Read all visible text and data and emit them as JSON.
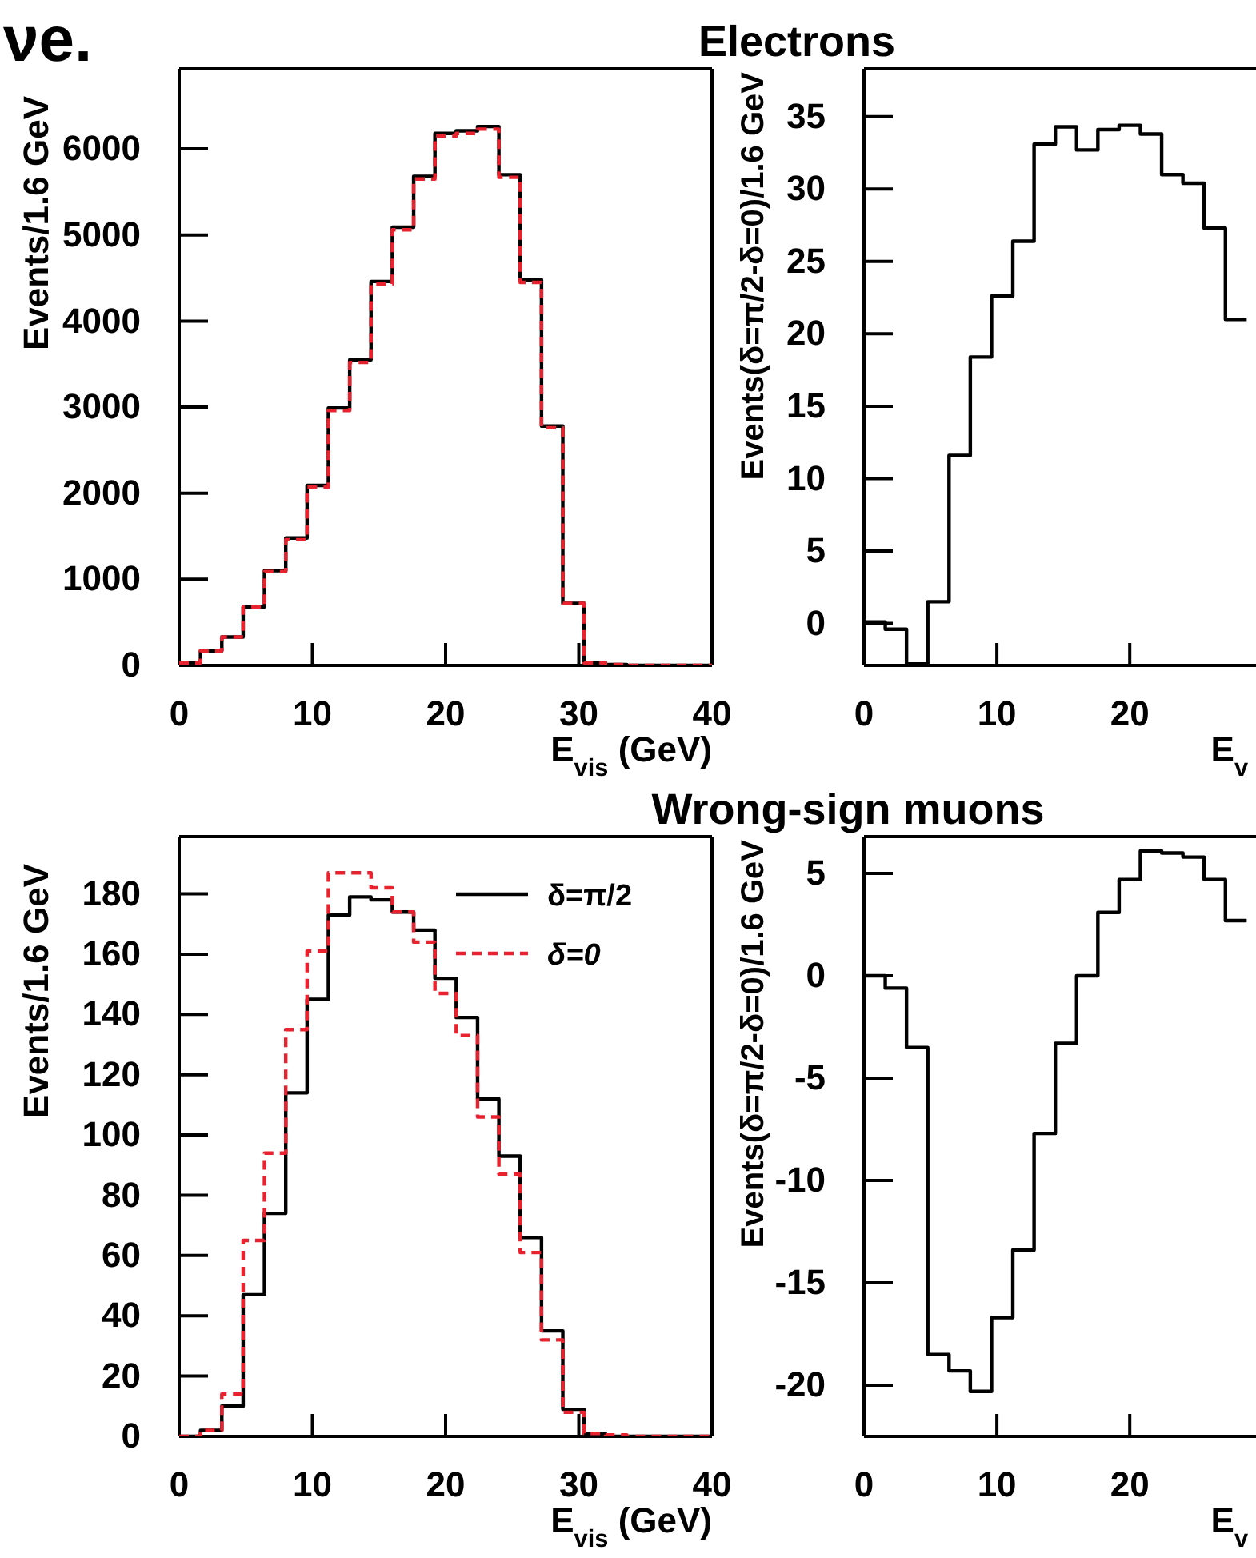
{
  "chart_data": [
    {
      "type": "histogram",
      "xlabel": "E$_{vis}$ (GeV)",
      "ylabel": "Events/1.6 GeV",
      "annotations": [
        "νe."
      ],
      "bins": [
        0,
        1.6,
        3.2,
        4.8,
        6.4,
        8,
        9.6,
        11.2,
        12.8,
        14.4,
        16,
        17.6,
        19.2,
        20.8,
        22.4,
        24,
        25.6,
        27.2,
        28.8,
        30.4,
        32,
        33.6,
        35.2,
        36.8,
        38.4,
        40
      ],
      "series": [
        {
          "color": "#000000",
          "line_style": "solid",
          "values": [
            30,
            170,
            330,
            680,
            1100,
            1480,
            2090,
            2990,
            3550,
            4460,
            5090,
            5680,
            6180,
            6210,
            6260,
            5700,
            4480,
            2780,
            720,
            30,
            10,
            0,
            0,
            0,
            0
          ]
        },
        {
          "color": "#e8222e",
          "line_style": "dashed",
          "values": [
            30,
            170,
            330,
            680,
            1090,
            1460,
            2070,
            2960,
            3520,
            4430,
            5060,
            5650,
            6150,
            6180,
            6230,
            5670,
            4450,
            2760,
            720,
            30,
            10,
            0,
            0,
            0,
            0
          ]
        }
      ],
      "xlim": [
        0,
        40
      ],
      "xticks": [
        0,
        10,
        20,
        30,
        40
      ],
      "ylim": [
        0,
        6930
      ],
      "yticks": [
        0,
        1000,
        2000,
        3000,
        4000,
        5000,
        6000
      ]
    },
    {
      "type": "histogram",
      "title": "Electrons",
      "xlabel": "E$_{v}$",
      "ylabel": "Events(δ=π/2-δ=0)/1.6 GeV",
      "bins": [
        0,
        1.6,
        3.2,
        4.8,
        6.4,
        8,
        9.6,
        11.2,
        12.8,
        14.4,
        16,
        17.6,
        19.2,
        20.8,
        22.4,
        24,
        25.6,
        27.2,
        28.8
      ],
      "series": [
        {
          "color": "#000000",
          "line_style": "solid",
          "values": [
            0.1,
            -0.4,
            -2.8,
            1.5,
            11.6,
            18.4,
            22.6,
            26.4,
            33.1,
            34.3,
            32.7,
            34.1,
            34.4,
            33.8,
            31.0,
            30.4,
            27.3,
            21.0
          ]
        }
      ],
      "xlim": [
        0,
        29.5
      ],
      "xticks": [
        0,
        10,
        20
      ],
      "ylim": [
        -2.9,
        38.3
      ],
      "yticks": [
        0,
        5,
        10,
        15,
        20,
        25,
        30,
        35
      ]
    },
    {
      "type": "histogram",
      "xlabel": "E$_{vis}$ (GeV)",
      "ylabel": "Events/1.6 GeV",
      "legend": "top right",
      "bins": [
        0,
        1.6,
        3.2,
        4.8,
        6.4,
        8,
        9.6,
        11.2,
        12.8,
        14.4,
        16,
        17.6,
        19.2,
        20.8,
        22.4,
        24,
        25.6,
        27.2,
        28.8,
        30.4,
        32,
        33.6,
        35.2,
        36.8,
        38.4,
        40
      ],
      "series": [
        {
          "name": "δ=π/2",
          "color": "#000000",
          "line_style": "solid",
          "values": [
            0,
            2,
            10,
            47,
            74,
            114,
            145,
            173,
            179,
            178,
            174,
            168,
            152,
            139,
            112,
            93,
            66,
            35,
            9,
            1,
            0,
            0,
            0,
            0,
            0
          ]
        },
        {
          "name": "δ=0",
          "color": "#e8222e",
          "line_style": "dashed",
          "values": [
            0,
            2,
            14,
            65,
            94,
            135,
            161,
            187,
            187,
            182,
            174,
            164,
            147,
            133,
            106,
            87,
            61,
            32,
            8,
            1,
            0.5,
            0,
            0,
            0,
            0
          ]
        }
      ],
      "xlim": [
        0,
        40
      ],
      "xticks": [
        0,
        10,
        20,
        30,
        40
      ],
      "ylim": [
        0,
        199
      ],
      "yticks": [
        0,
        20,
        40,
        60,
        80,
        100,
        120,
        140,
        160,
        180
      ]
    },
    {
      "type": "histogram",
      "title": "Wrong-sign muons",
      "xlabel": "E$_{v}$",
      "ylabel": "Events(δ=π/2-δ=0)/1.6 GeV",
      "bins": [
        0,
        1.6,
        3.2,
        4.8,
        6.4,
        8,
        9.6,
        11.2,
        12.8,
        14.4,
        16,
        17.6,
        19.2,
        20.8,
        22.4,
        24,
        25.6,
        27.2,
        28.8
      ],
      "series": [
        {
          "color": "#000000",
          "line_style": "solid",
          "values": [
            0,
            -0.6,
            -3.5,
            -18.5,
            -19.3,
            -20.3,
            -16.7,
            -13.4,
            -7.7,
            -3.3,
            0,
            3.1,
            4.7,
            6.1,
            6.0,
            5.8,
            4.7,
            2.7
          ]
        }
      ],
      "xlim": [
        0,
        29.5
      ],
      "xticks": [
        0,
        10,
        20
      ],
      "ylim": [
        -22.5,
        6.8
      ],
      "yticks": [
        -20,
        -15,
        -10,
        -5,
        0,
        5
      ]
    }
  ]
}
